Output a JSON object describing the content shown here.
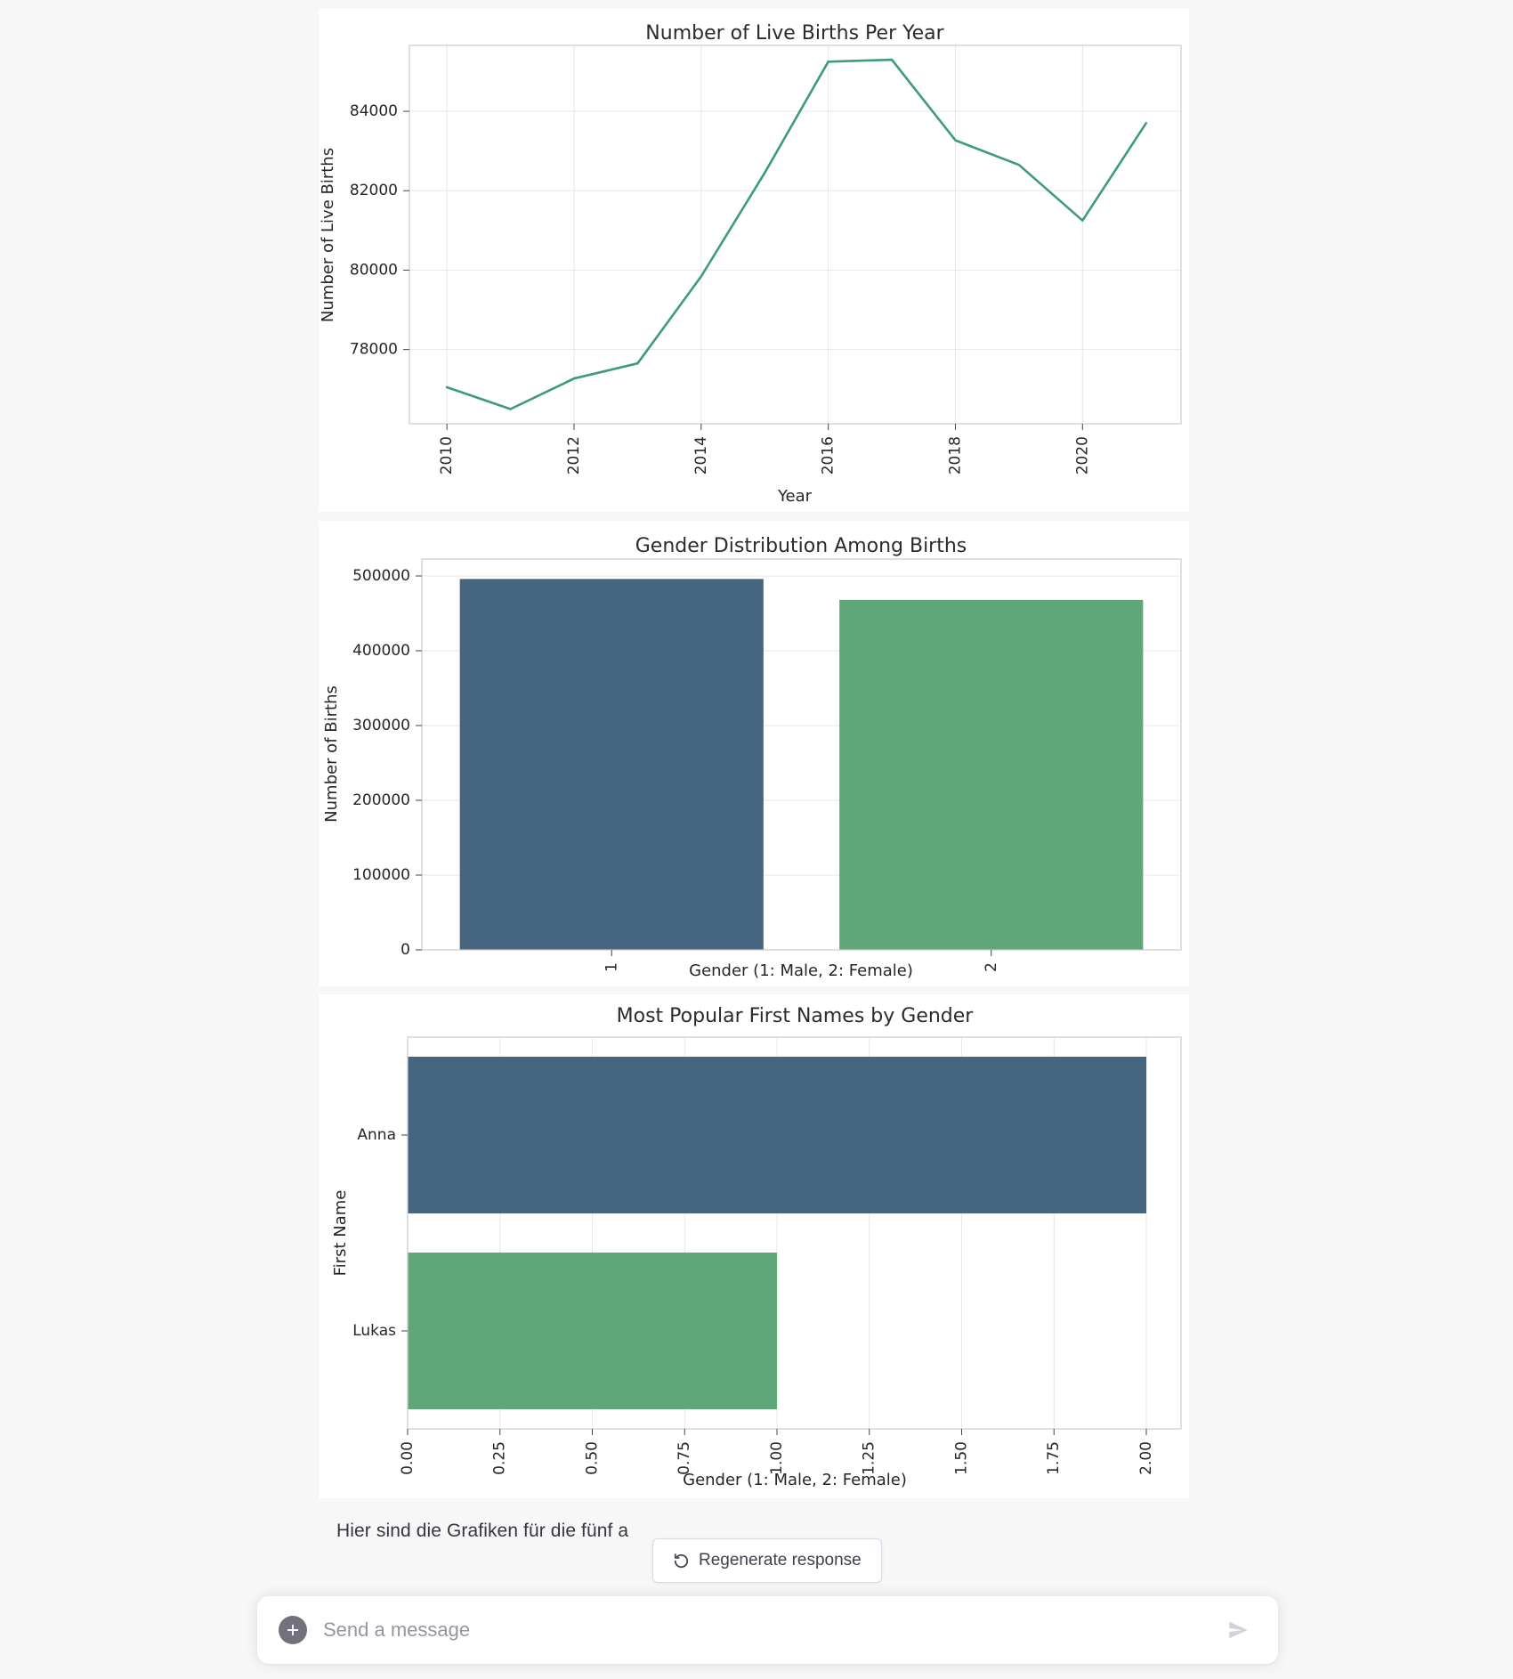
{
  "chart_data": [
    {
      "id": "births-per-year",
      "type": "line",
      "title": "Number of Live Births Per Year",
      "xlabel": "Year",
      "ylabel": "Number of Live Births",
      "x": [
        2010,
        2011,
        2012,
        2013,
        2014,
        2015,
        2016,
        2017,
        2018,
        2019,
        2020,
        2021
      ],
      "values": [
        77050,
        76500,
        77270,
        77650,
        79840,
        82450,
        85250,
        85300,
        83270,
        82650,
        81250,
        83700
      ],
      "xticks": {
        "values": [
          2010,
          2012,
          2014,
          2016,
          2018,
          2020
        ],
        "labels": [
          "2010",
          "2012",
          "2014",
          "2016",
          "2018",
          "2020"
        ]
      },
      "yticks": {
        "values": [
          78000,
          80000,
          82000,
          84000
        ],
        "labels": [
          "78000",
          "80000",
          "82000",
          "84000"
        ]
      },
      "xlim": [
        2009.41,
        2021.55
      ],
      "ylim": [
        76130,
        85660
      ],
      "line_color": "#3D9B7C",
      "grid": "xy",
      "legend": "none"
    },
    {
      "id": "gender-distribution",
      "type": "bar",
      "title": "Gender Distribution Among Births",
      "xlabel": "Gender (1: Male, 2: Female)",
      "ylabel": "Number of Births",
      "categories": [
        "1",
        "2"
      ],
      "values": [
        496000,
        468000
      ],
      "bar_colors": [
        "#46657E",
        "#5FA778"
      ],
      "yticks": {
        "values": [
          0,
          100000,
          200000,
          300000,
          400000,
          500000
        ],
        "labels": [
          "0",
          "100000",
          "200000",
          "300000",
          "400000",
          "500000"
        ]
      },
      "ylim": [
        0,
        522600
      ],
      "grid": "y",
      "legend": "none"
    },
    {
      "id": "popular-names",
      "type": "barh",
      "title": "Most Popular First Names by Gender",
      "xlabel": "Gender (1: Male, 2: Female)",
      "ylabel": "First Name",
      "categories": [
        "Anna",
        "Lukas"
      ],
      "values": [
        2.0,
        1.0
      ],
      "bar_colors": [
        "#46657E",
        "#5FA778"
      ],
      "xticks": {
        "values": [
          0,
          0.25,
          0.5,
          0.75,
          1.0,
          1.25,
          1.5,
          1.75,
          2.0
        ],
        "labels": [
          "0.00",
          "0.25",
          "0.50",
          "0.75",
          "1.00",
          "1.25",
          "1.50",
          "1.75",
          "2.00"
        ]
      },
      "xlim": [
        0,
        2.094
      ],
      "grid": "x",
      "legend": "none"
    }
  ],
  "response": {
    "text": "Hier sind die Grafiken für die fünf a"
  },
  "regenerate_button": {
    "label": "Regenerate response",
    "icon": "regenerate-icon"
  },
  "composer": {
    "placeholder": "Send a message",
    "plus_icon": "plus-icon",
    "send_icon": "send-icon",
    "send_icon_color": "#d2d2da",
    "plus_circle_color": "#72727e"
  },
  "style_colors": {
    "page_background": "#f7f7f8",
    "card_background": "#ffffff",
    "grid_line": "#e7e7e8",
    "plot_spine": "#cbcccd",
    "chart_text": "#262626"
  }
}
